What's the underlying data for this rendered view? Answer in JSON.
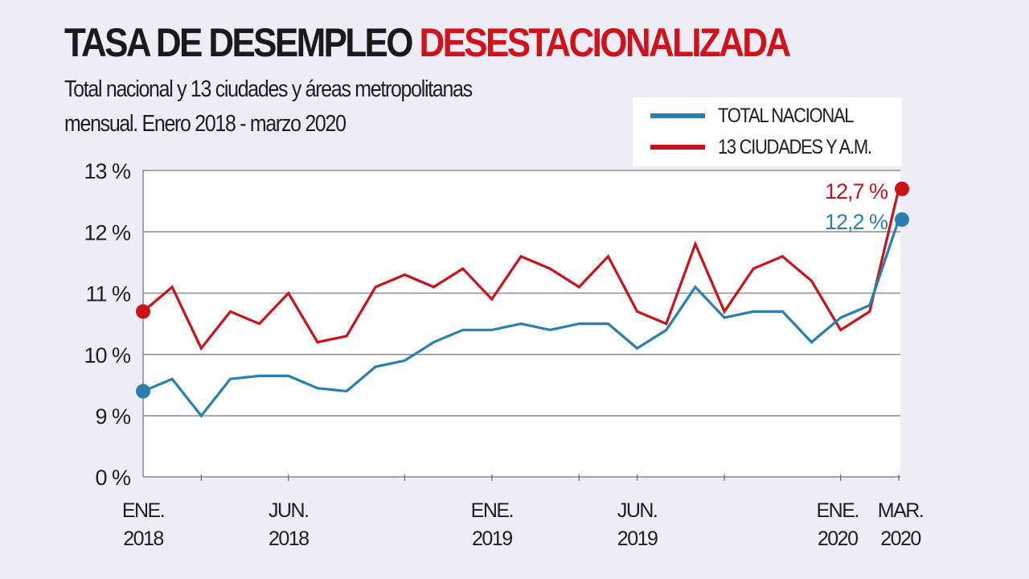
{
  "header": {
    "title_black": "TASA DE DESEMPLEO",
    "title_red": "DESESTACIONALIZADA",
    "subtitle_line1": "Total nacional y 13 ciudades y áreas metropolitanas",
    "subtitle_line2": "mensual. Enero 2018 - marzo 2020"
  },
  "colors": {
    "total": "#2a7fb0",
    "ciudades": "#cc1219",
    "title_red": "#d0121b"
  },
  "chart_data": {
    "type": "line",
    "title": "TASA DE DESEMPLEO DESESTACIONALIZADA",
    "subtitle": "Total nacional y 13 ciudades y áreas metropolitanas mensual. Enero 2018 - marzo 2020",
    "xlabel": "",
    "ylabel": "",
    "ylim": [
      9,
      13
    ],
    "y_axis_break": true,
    "y_ticks": [
      "0 %",
      "9 %",
      "10 %",
      "11 %",
      "12 %",
      "13 %"
    ],
    "y_tick_values": [
      0,
      9,
      10,
      11,
      12,
      13
    ],
    "grid": true,
    "legend_position": "top-right",
    "x": [
      "2018-01",
      "2018-02",
      "2018-03",
      "2018-04",
      "2018-05",
      "2018-06",
      "2018-07",
      "2018-08",
      "2018-09",
      "2018-10",
      "2018-11",
      "2018-12",
      "2019-01",
      "2019-02",
      "2019-03",
      "2019-04",
      "2019-05",
      "2019-06",
      "2019-07",
      "2019-08",
      "2019-09",
      "2019-10",
      "2019-11",
      "2019-12",
      "2020-01",
      "2020-02",
      "2020-03"
    ],
    "x_tick_labels": [
      {
        "index": 0,
        "line1": "ENE.",
        "line2": "2018"
      },
      {
        "index": 5,
        "line1": "JUN.",
        "line2": "2018"
      },
      {
        "index": 12,
        "line1": "ENE.",
        "line2": "2019"
      },
      {
        "index": 17,
        "line1": "JUN.",
        "line2": "2019"
      },
      {
        "index": 24,
        "line1": "ENE.",
        "line2": "2020"
      },
      {
        "index": 26,
        "line1": "MAR.",
        "line2": "2020"
      }
    ],
    "x_minor_tick_indices": [
      2,
      5,
      9,
      12,
      15,
      17,
      20,
      24,
      26
    ],
    "series": [
      {
        "name": "TOTAL NACIONAL",
        "color": "#2a7fb0",
        "values": [
          9.4,
          9.6,
          9.0,
          9.6,
          9.65,
          9.65,
          9.45,
          9.4,
          9.8,
          9.9,
          10.2,
          10.4,
          10.4,
          10.5,
          10.4,
          10.5,
          10.5,
          10.1,
          10.4,
          11.1,
          10.6,
          10.7,
          10.7,
          10.2,
          10.6,
          10.8,
          12.2
        ],
        "end_label": "12,2 %"
      },
      {
        "name": "13 CIUDADES Y A.M.",
        "color": "#cc1219",
        "values": [
          10.7,
          11.1,
          10.1,
          10.7,
          10.5,
          11.0,
          10.2,
          10.3,
          11.1,
          11.3,
          11.1,
          11.4,
          10.9,
          11.6,
          11.4,
          11.1,
          11.6,
          10.7,
          10.5,
          11.8,
          10.7,
          11.4,
          11.6,
          11.2,
          10.4,
          10.7,
          12.7
        ],
        "end_label": "12,7 %"
      }
    ]
  }
}
